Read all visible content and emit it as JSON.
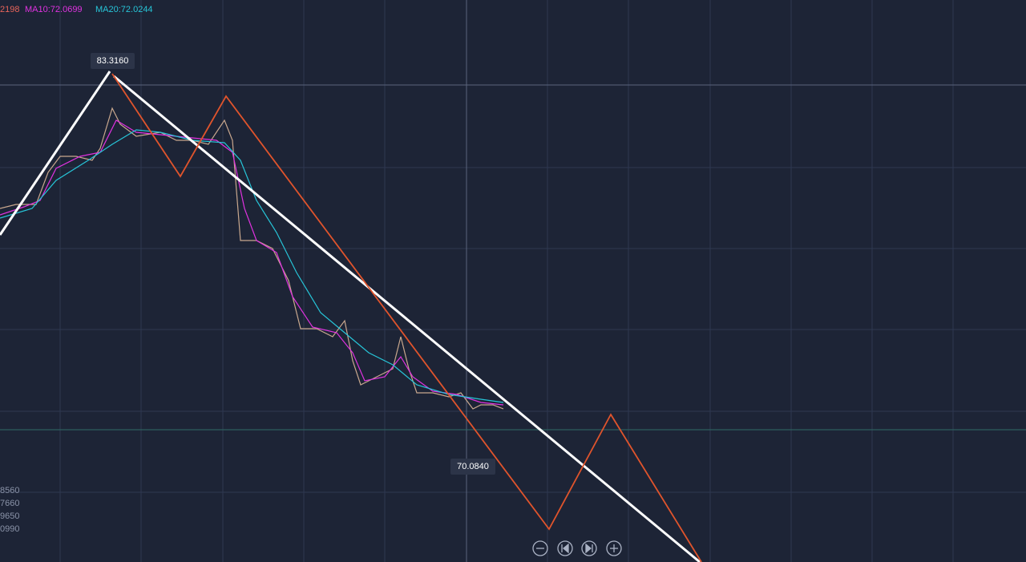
{
  "legend": {
    "ma5": "2198",
    "ma10": "MA10:72.0699",
    "ma20": "MA20:72.0244"
  },
  "labels": {
    "high": "83.3160",
    "low": "70.0840"
  },
  "left_axis": [
    "8560",
    "7660",
    "9650",
    "0990"
  ]
}
